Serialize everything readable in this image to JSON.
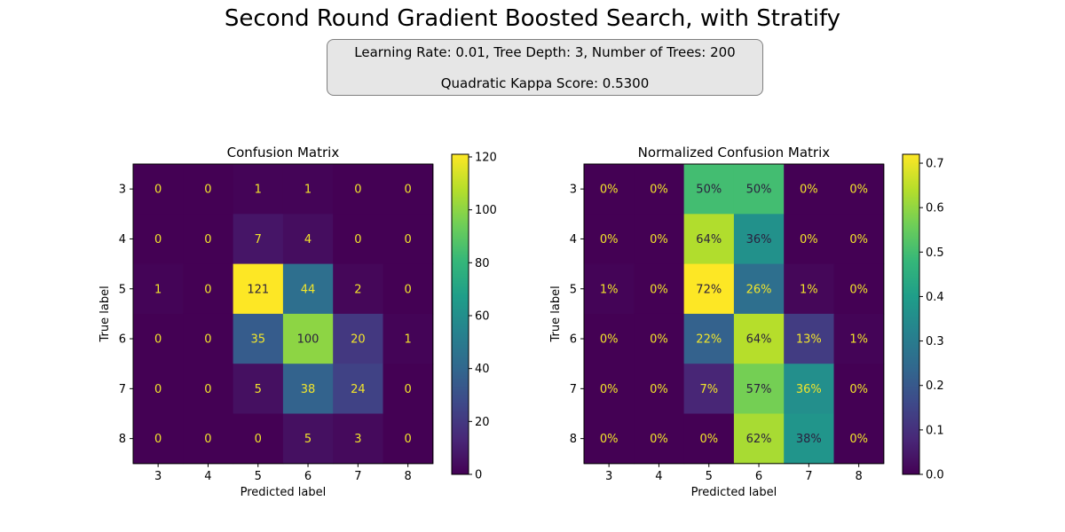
{
  "figure": {
    "title": "Second Round Gradient Boosted Search, with Stratify",
    "info_line1": "Learning Rate: 0.01, Tree Depth: 3, Number of Trees: 200",
    "info_line2": "Quadratic Kappa Score: 0.5300"
  },
  "chart_data": [
    {
      "type": "heatmap",
      "title": "Confusion Matrix",
      "xlabel": "Predicted label",
      "ylabel": "True label",
      "x_categories": [
        "3",
        "4",
        "5",
        "6",
        "7",
        "8"
      ],
      "y_categories": [
        "3",
        "4",
        "5",
        "6",
        "7",
        "8"
      ],
      "values": [
        [
          0,
          0,
          1,
          1,
          0,
          0
        ],
        [
          0,
          0,
          7,
          4,
          0,
          0
        ],
        [
          1,
          0,
          121,
          44,
          2,
          0
        ],
        [
          0,
          0,
          35,
          100,
          20,
          1
        ],
        [
          0,
          0,
          5,
          38,
          24,
          0
        ],
        [
          0,
          0,
          0,
          5,
          3,
          0
        ]
      ],
      "cell_labels": [
        [
          "0",
          "0",
          "1",
          "1",
          "0",
          "0"
        ],
        [
          "0",
          "0",
          "7",
          "4",
          "0",
          "0"
        ],
        [
          "1",
          "0",
          "121",
          "44",
          "2",
          "0"
        ],
        [
          "0",
          "0",
          "35",
          "100",
          "20",
          "1"
        ],
        [
          "0",
          "0",
          "5",
          "38",
          "24",
          "0"
        ],
        [
          "0",
          "0",
          "0",
          "5",
          "3",
          "0"
        ]
      ],
      "colormap": "viridis",
      "vmin": 0,
      "vmax": 121,
      "colorbar_ticks": [
        0,
        20,
        40,
        60,
        80,
        100,
        120
      ],
      "colorbar_tick_labels": [
        "0",
        "20",
        "40",
        "60",
        "80",
        "100",
        "120"
      ]
    },
    {
      "type": "heatmap",
      "title": "Normalized Confusion Matrix",
      "xlabel": "Predicted label",
      "ylabel": "True label",
      "x_categories": [
        "3",
        "4",
        "5",
        "6",
        "7",
        "8"
      ],
      "y_categories": [
        "3",
        "4",
        "5",
        "6",
        "7",
        "8"
      ],
      "values": [
        [
          0,
          0,
          0.5,
          0.5,
          0,
          0
        ],
        [
          0,
          0,
          0.636,
          0.364,
          0,
          0
        ],
        [
          0.006,
          0,
          0.72,
          0.262,
          0.012,
          0
        ],
        [
          0,
          0,
          0.224,
          0.641,
          0.128,
          0.006
        ],
        [
          0,
          0,
          0.075,
          0.567,
          0.358,
          0
        ],
        [
          0,
          0,
          0,
          0.625,
          0.375,
          0
        ]
      ],
      "cell_labels": [
        [
          "0%",
          "0%",
          "50%",
          "50%",
          "0%",
          "0%"
        ],
        [
          "0%",
          "0%",
          "64%",
          "36%",
          "0%",
          "0%"
        ],
        [
          "1%",
          "0%",
          "72%",
          "26%",
          "1%",
          "0%"
        ],
        [
          "0%",
          "0%",
          "22%",
          "64%",
          "13%",
          "1%"
        ],
        [
          "0%",
          "0%",
          "7%",
          "57%",
          "36%",
          "0%"
        ],
        [
          "0%",
          "0%",
          "0%",
          "62%",
          "38%",
          "0%"
        ]
      ],
      "colormap": "viridis",
      "vmin": 0,
      "vmax": 0.72,
      "colorbar_ticks": [
        0,
        0.1,
        0.2,
        0.3,
        0.4,
        0.5,
        0.6,
        0.7
      ],
      "colorbar_tick_labels": [
        "0.0",
        "0.1",
        "0.2",
        "0.3",
        "0.4",
        "0.5",
        "0.6",
        "0.7"
      ]
    }
  ]
}
